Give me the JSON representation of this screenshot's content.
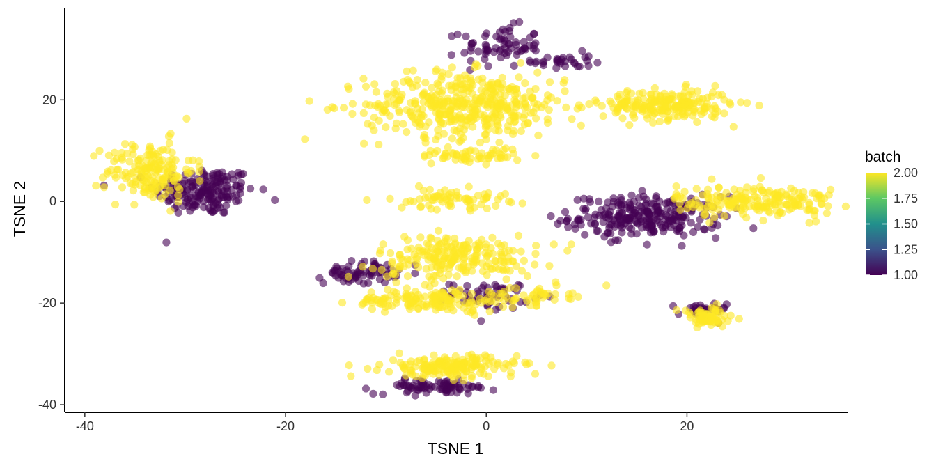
{
  "chart_data": {
    "type": "scatter",
    "title": "",
    "xlabel": "TSNE 1",
    "ylabel": "TSNE 2",
    "xlim": [
      -42,
      36
    ],
    "ylim": [
      -41.5,
      38
    ],
    "x_ticks": [
      -40,
      -20,
      0,
      20
    ],
    "x_tick_labels": [
      "-40",
      "-20",
      "0",
      "20"
    ],
    "y_ticks": [
      -40,
      -20,
      0,
      20
    ],
    "y_tick_labels": [
      "-40",
      "-20",
      "0",
      "20"
    ],
    "grid": false,
    "point_alpha": 0.6,
    "color_scale": {
      "name": "viridis",
      "title": "batch",
      "range": [
        1.0,
        2.0
      ],
      "breaks": [
        1.0,
        1.25,
        1.5,
        1.75,
        2.0
      ],
      "break_labels": [
        "1.00",
        "1.25",
        "1.50",
        "1.75",
        "2.00"
      ],
      "stops": [
        "#440154",
        "#3B528B",
        "#21908C",
        "#5DC863",
        "#FDE725"
      ]
    },
    "legend_position": "right",
    "clusters": [
      {
        "batch": 2,
        "cx": -33.5,
        "cy": 6,
        "sx": 2.2,
        "sy": 3.0,
        "n": 170
      },
      {
        "batch": 1,
        "cx": -28,
        "cy": 2,
        "sx": 2.5,
        "sy": 2.4,
        "n": 180
      },
      {
        "batch": 1,
        "cx": 1.5,
        "cy": 30.5,
        "sx": 2.0,
        "sy": 2.0,
        "n": 70
      },
      {
        "batch": 1,
        "cx": 7.5,
        "cy": 27.5,
        "sx": 1.5,
        "sy": 0.9,
        "n": 30
      },
      {
        "batch": 2,
        "cx": -2,
        "cy": 19,
        "sx": 5.0,
        "sy": 3.2,
        "n": 430
      },
      {
        "batch": 2,
        "cx": 18,
        "cy": 19,
        "sx": 3.2,
        "sy": 1.5,
        "n": 220
      },
      {
        "batch": 2,
        "cx": -1.5,
        "cy": 9,
        "sx": 2.5,
        "sy": 0.7,
        "n": 60
      },
      {
        "batch": 2,
        "cx": -3.5,
        "cy": 0.5,
        "sx": 2.8,
        "sy": 1.0,
        "n": 70
      },
      {
        "batch": 1,
        "cx": 16,
        "cy": -3,
        "sx": 3.8,
        "sy": 2.0,
        "n": 260
      },
      {
        "batch": 2,
        "cx": 27,
        "cy": 0,
        "sx": 4.0,
        "sy": 1.6,
        "n": 200
      },
      {
        "batch": 2,
        "cx": -3,
        "cy": -11,
        "sx": 4.0,
        "sy": 2.2,
        "n": 220
      },
      {
        "batch": 1,
        "cx": -12.5,
        "cy": -14,
        "sx": 1.8,
        "sy": 1.1,
        "n": 70
      },
      {
        "batch": 2,
        "cx": -5.5,
        "cy": -19.5,
        "sx": 3.8,
        "sy": 1.1,
        "n": 140
      },
      {
        "batch": 1,
        "cx": 0.5,
        "cy": -18.5,
        "sx": 2.0,
        "sy": 1.3,
        "n": 60
      },
      {
        "batch": 2,
        "cx": 4,
        "cy": -18.5,
        "sx": 2.2,
        "sy": 0.9,
        "n": 50
      },
      {
        "batch": 1,
        "cx": 21.5,
        "cy": -21.5,
        "sx": 1.2,
        "sy": 0.8,
        "n": 30
      },
      {
        "batch": 2,
        "cx": 22,
        "cy": -23,
        "sx": 1.4,
        "sy": 1.0,
        "n": 70
      },
      {
        "batch": 2,
        "cx": -3.5,
        "cy": -32.5,
        "sx": 3.3,
        "sy": 1.1,
        "n": 170
      },
      {
        "batch": 1,
        "cx": -5,
        "cy": -36.5,
        "sx": 3.0,
        "sy": 0.7,
        "n": 80
      }
    ]
  }
}
